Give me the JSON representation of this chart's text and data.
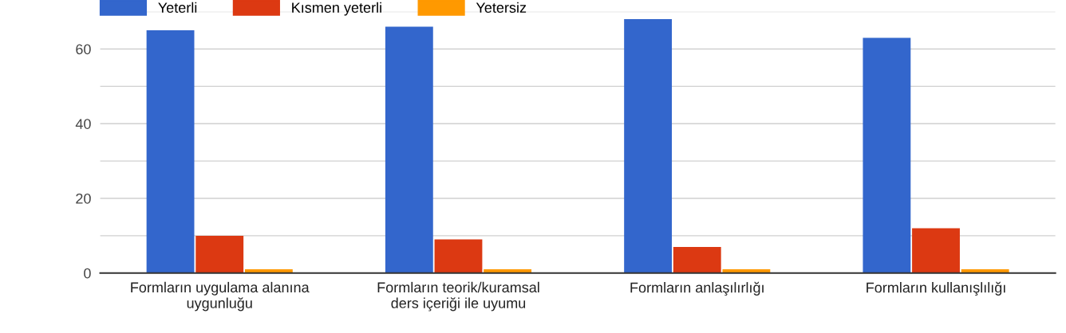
{
  "chart_data": {
    "type": "bar",
    "categories": [
      "Formların uygulama alanına\nuygunluğu",
      "Formların teorik/kuramsal\nders içeriği ile uyumu",
      "Formların anlaşılırlığı",
      "Formların kullanışlılığı"
    ],
    "series": [
      {
        "name": "Yeterli",
        "color": "#3366cc",
        "values": [
          65,
          66,
          68,
          63
        ]
      },
      {
        "name": "Kısmen yeterli",
        "color": "#dc3912",
        "values": [
          10,
          9,
          7,
          12
        ]
      },
      {
        "name": "Yetersiz",
        "color": "#ff9900",
        "values": [
          1,
          1,
          1,
          1
        ]
      }
    ],
    "ylim": [
      0,
      70
    ],
    "yticks": [
      0,
      {
        "value": 10,
        "label": null
      },
      20,
      {
        "value": 30,
        "label": null
      },
      40,
      {
        "value": 50,
        "label": null
      },
      60,
      {
        "value": 70,
        "label": null
      }
    ],
    "grid": "y",
    "legend": "top left"
  }
}
